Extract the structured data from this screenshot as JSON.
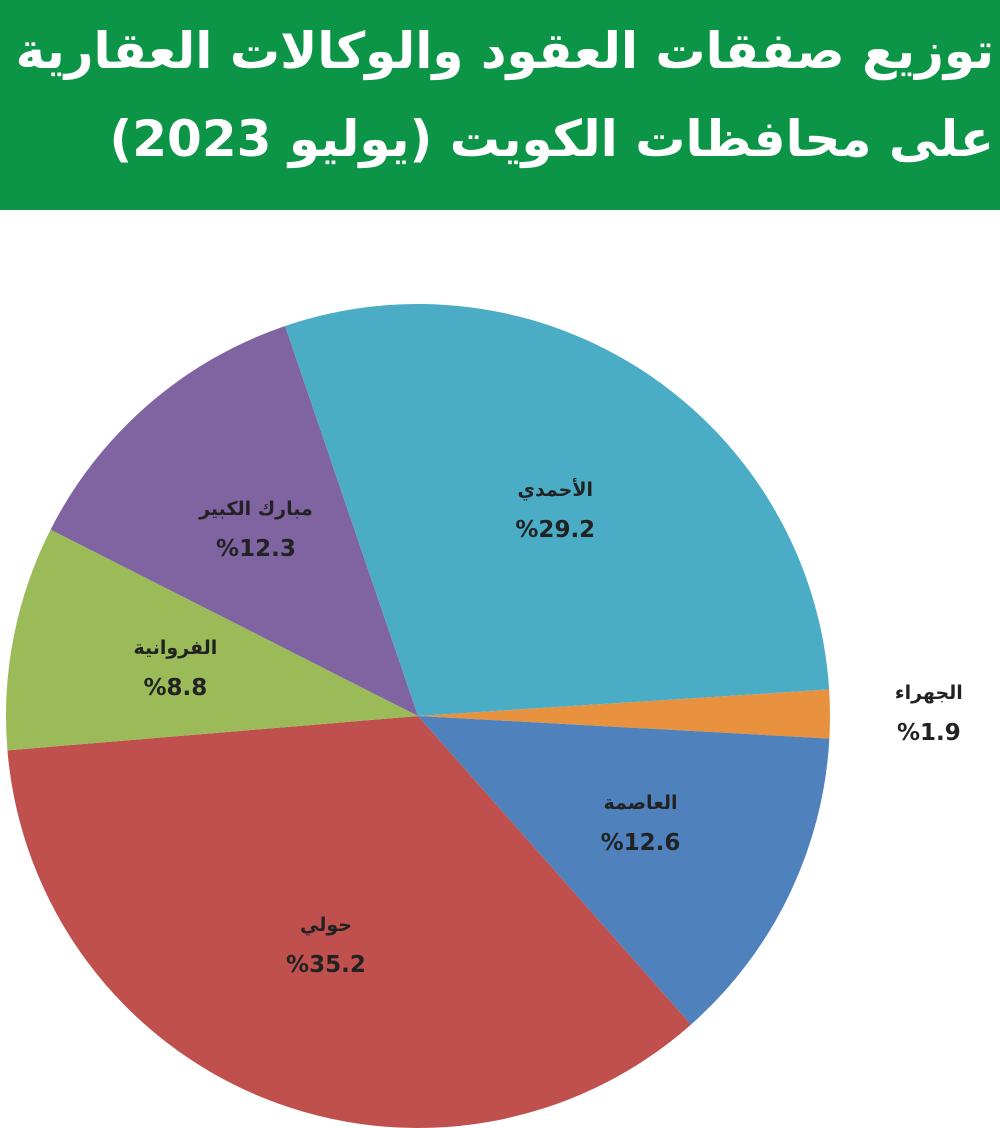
{
  "chart_data": {
    "type": "pie",
    "title": [
      "توزيع صفقات العقود والوكالات العقارية",
      "على محافظات الكويت (يوليو 2023)"
    ],
    "categories": [
      "الجهراء",
      "العاصمة",
      "حولي",
      "الفروانية",
      "مبارك الكبير",
      "الأحمدي"
    ],
    "values": [
      1.9,
      12.6,
      35.2,
      8.8,
      12.3,
      29.2
    ],
    "value_labels": [
      "%1.9",
      "%12.6",
      "%35.2",
      "%8.8",
      "%12.3",
      "%29.2"
    ],
    "colors": [
      "#e8923f",
      "#4f81bd",
      "#c0504d",
      "#9bbb59",
      "#8064a2",
      "#4bacc6"
    ]
  }
}
